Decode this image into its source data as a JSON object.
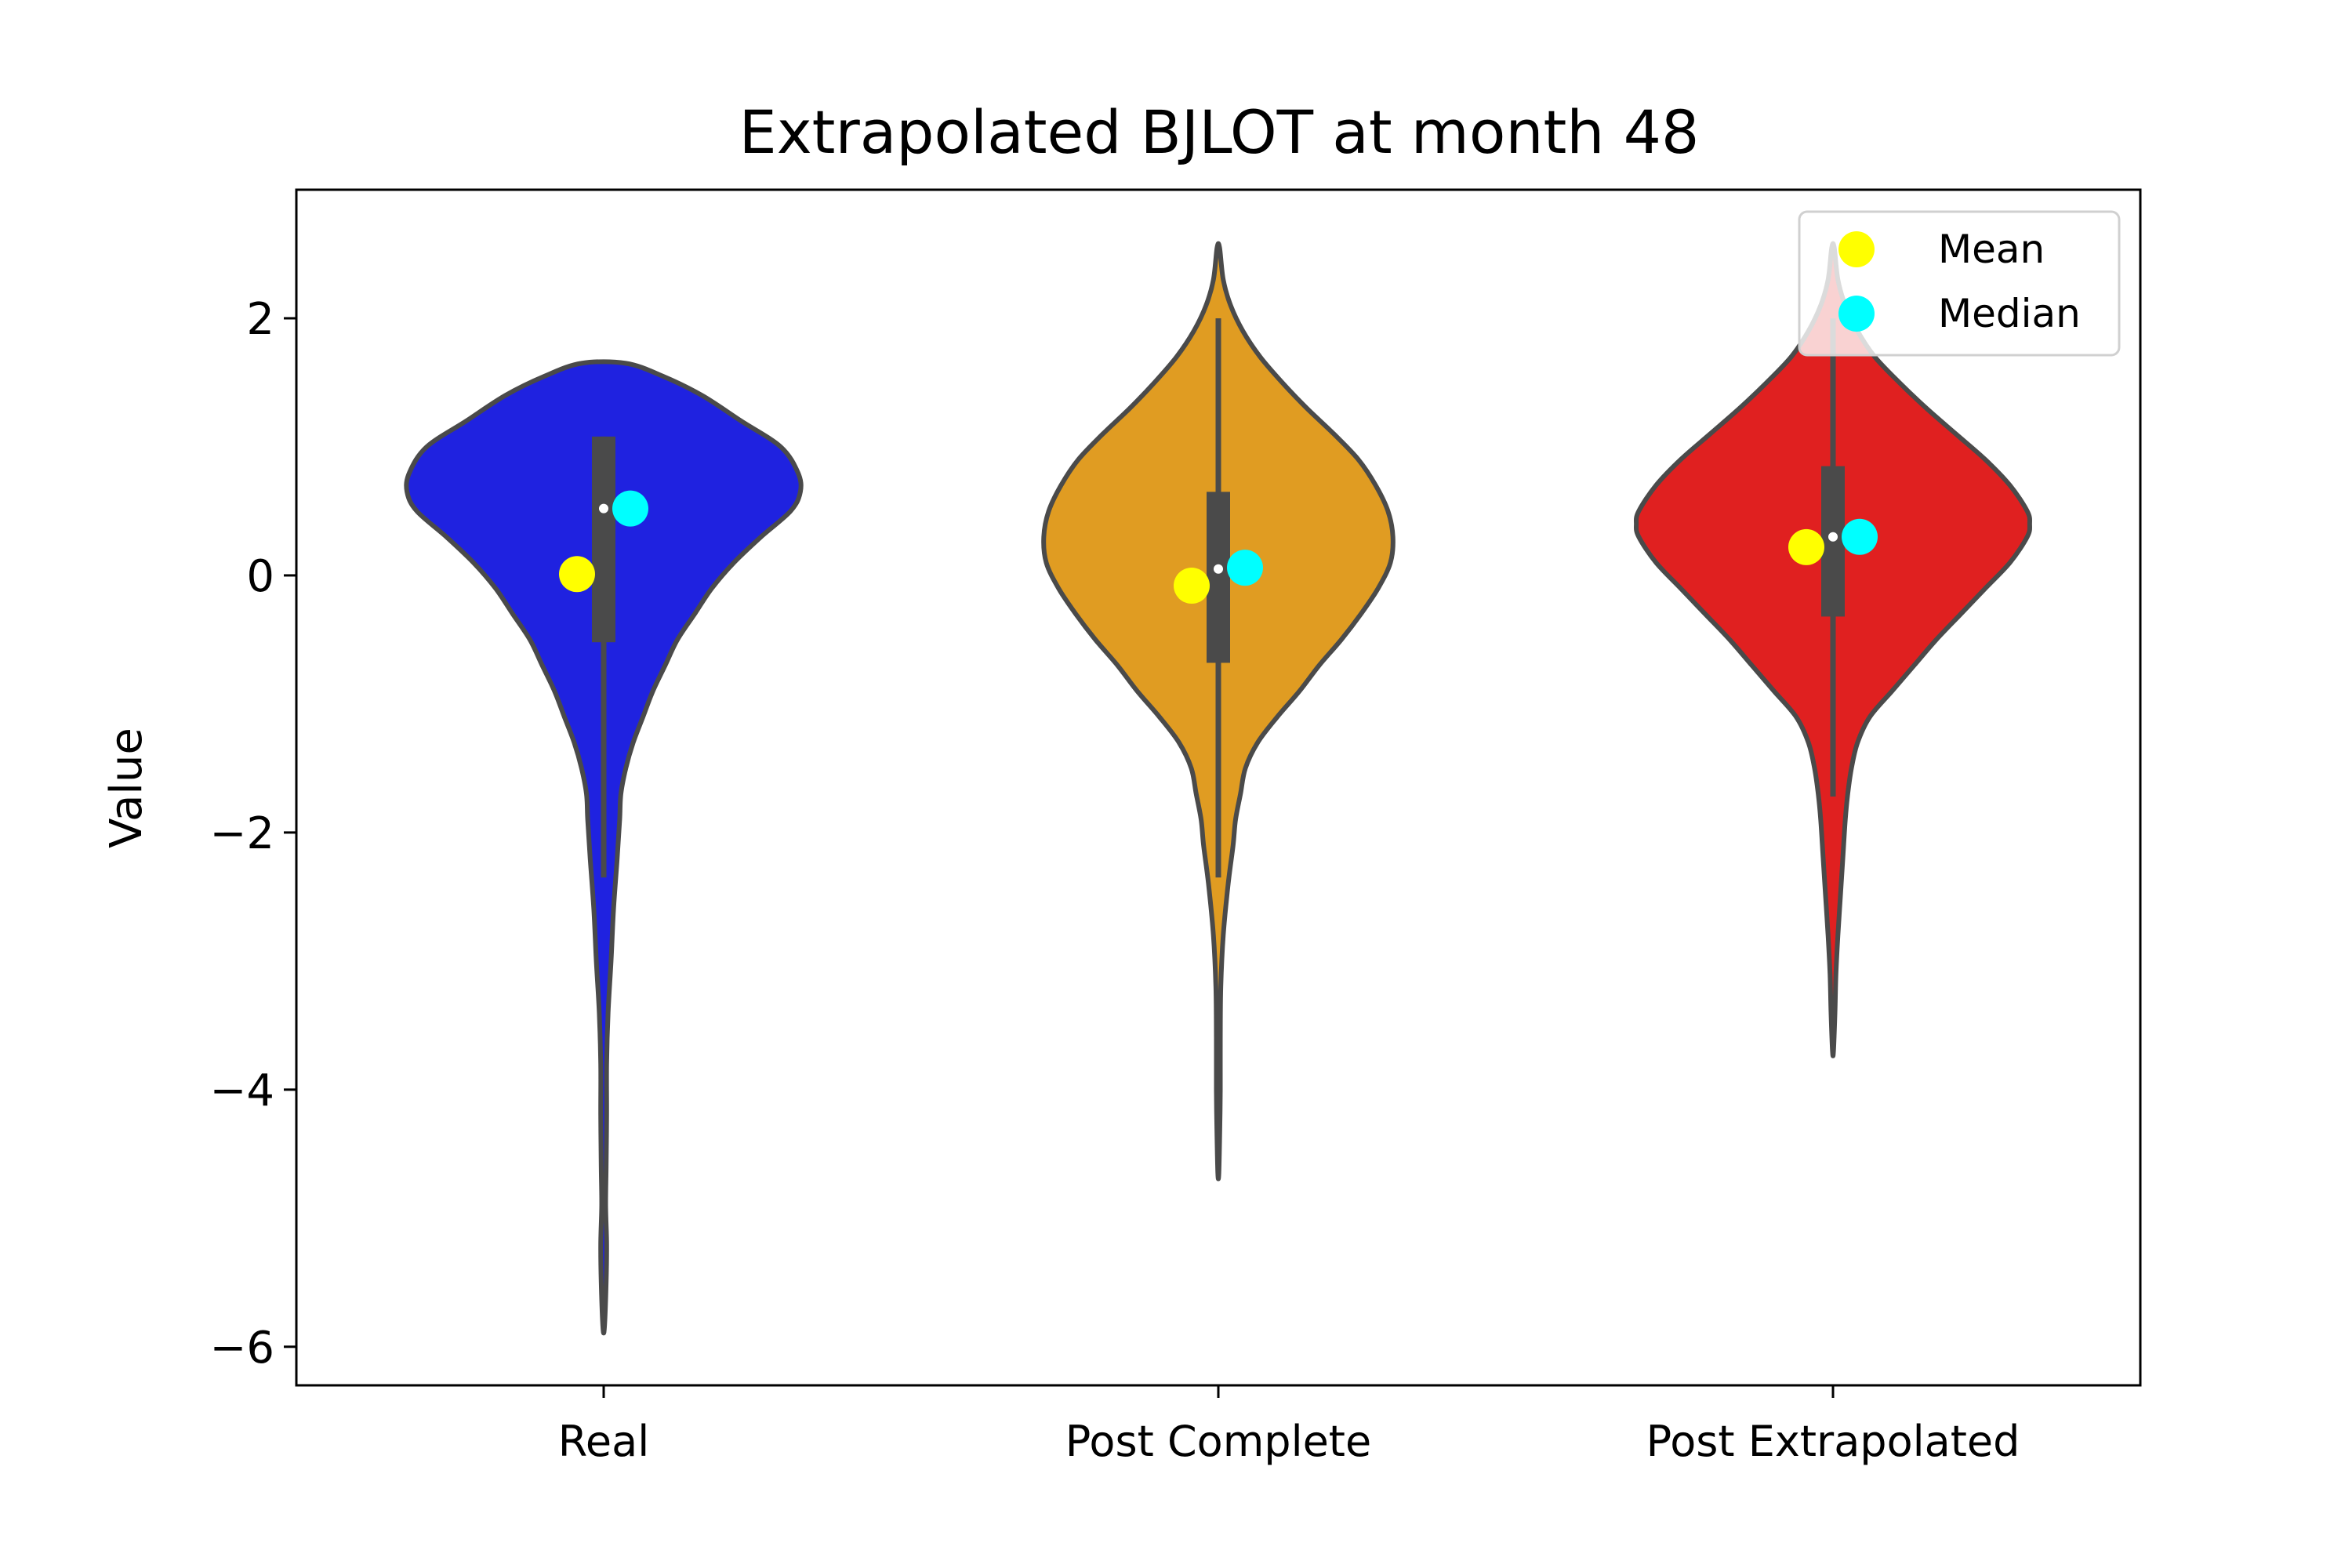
{
  "chart_data": {
    "type": "violin",
    "title": "Extrapolated BJLOT at month 48",
    "xlabel": "",
    "ylabel": "Value",
    "ylim": [
      -6.3,
      3.0
    ],
    "yticks": [
      2,
      0,
      -2,
      -4,
      -6
    ],
    "ytick_labels": [
      "2",
      "0",
      "−2",
      "−4",
      "−6"
    ],
    "categories": [
      "Real",
      "Post Complete",
      "Post Extrapolated"
    ],
    "grid": false,
    "legend": {
      "placement": "top-right",
      "entries": [
        {
          "label": "Mean",
          "color": "#ffff00"
        },
        {
          "label": "Median",
          "color": "#00ffff"
        }
      ]
    },
    "series": [
      {
        "category": "Real",
        "color": "#1f22e0",
        "min": -5.85,
        "max": 1.65,
        "q1": -0.52,
        "q3": 1.08,
        "median": 0.52,
        "whisker_low": -2.35,
        "whisker_high": 1.08,
        "mean": 0.01,
        "median_marker": 0.52,
        "density_profile": [
          [
            1.65,
            0.09
          ],
          [
            1.55,
            0.24
          ],
          [
            1.4,
            0.4
          ],
          [
            1.2,
            0.56
          ],
          [
            1.0,
            0.72
          ],
          [
            0.8,
            0.79
          ],
          [
            0.65,
            0.8
          ],
          [
            0.5,
            0.76
          ],
          [
            0.3,
            0.64
          ],
          [
            0.1,
            0.53
          ],
          [
            -0.1,
            0.44
          ],
          [
            -0.3,
            0.37
          ],
          [
            -0.5,
            0.3
          ],
          [
            -0.7,
            0.25
          ],
          [
            -0.9,
            0.2
          ],
          [
            -1.1,
            0.16
          ],
          [
            -1.3,
            0.12
          ],
          [
            -1.5,
            0.09
          ],
          [
            -1.7,
            0.07
          ],
          [
            -1.9,
            0.065
          ],
          [
            -2.2,
            0.055
          ],
          [
            -2.6,
            0.04
          ],
          [
            -3.0,
            0.03
          ],
          [
            -3.4,
            0.018
          ],
          [
            -3.8,
            0.012
          ],
          [
            -4.2,
            0.012
          ],
          [
            -4.6,
            0.01
          ],
          [
            -4.9,
            0.008
          ],
          [
            -5.2,
            0.012
          ],
          [
            -5.5,
            0.01
          ],
          [
            -5.85,
            0.003
          ]
        ]
      },
      {
        "category": "Post Complete",
        "color": "#e09c22",
        "min": -4.65,
        "max": 2.55,
        "q1": -0.68,
        "q3": 0.65,
        "median": 0.05,
        "whisker_low": -2.35,
        "whisker_high": 2.0,
        "mean": -0.08,
        "median_marker": 0.06,
        "density_profile": [
          [
            2.55,
            0.005
          ],
          [
            2.3,
            0.02
          ],
          [
            2.1,
            0.05
          ],
          [
            1.9,
            0.1
          ],
          [
            1.7,
            0.17
          ],
          [
            1.5,
            0.26
          ],
          [
            1.3,
            0.36
          ],
          [
            1.1,
            0.47
          ],
          [
            0.9,
            0.57
          ],
          [
            0.7,
            0.64
          ],
          [
            0.5,
            0.69
          ],
          [
            0.3,
            0.71
          ],
          [
            0.1,
            0.7
          ],
          [
            -0.1,
            0.65
          ],
          [
            -0.3,
            0.58
          ],
          [
            -0.5,
            0.5
          ],
          [
            -0.7,
            0.41
          ],
          [
            -0.9,
            0.33
          ],
          [
            -1.1,
            0.24
          ],
          [
            -1.3,
            0.16
          ],
          [
            -1.5,
            0.11
          ],
          [
            -1.7,
            0.09
          ],
          [
            -1.9,
            0.07
          ],
          [
            -2.1,
            0.06
          ],
          [
            -2.4,
            0.04
          ],
          [
            -2.8,
            0.02
          ],
          [
            -3.2,
            0.01
          ],
          [
            -3.6,
            0.008
          ],
          [
            -4.0,
            0.008
          ],
          [
            -4.3,
            0.006
          ],
          [
            -4.65,
            0.002
          ]
        ]
      },
      {
        "category": "Post Extrapolated",
        "color": "#e02020",
        "min": -3.7,
        "max": 2.55,
        "q1": -0.32,
        "q3": 0.85,
        "median": 0.3,
        "whisker_low": -1.72,
        "whisker_high": 2.0,
        "mean": 0.22,
        "median_marker": 0.3,
        "density_profile": [
          [
            2.55,
            0.005
          ],
          [
            2.3,
            0.02
          ],
          [
            2.1,
            0.05
          ],
          [
            1.9,
            0.1
          ],
          [
            1.7,
            0.17
          ],
          [
            1.5,
            0.27
          ],
          [
            1.3,
            0.38
          ],
          [
            1.1,
            0.5
          ],
          [
            0.9,
            0.62
          ],
          [
            0.7,
            0.72
          ],
          [
            0.5,
            0.79
          ],
          [
            0.4,
            0.8
          ],
          [
            0.3,
            0.79
          ],
          [
            0.1,
            0.72
          ],
          [
            -0.1,
            0.62
          ],
          [
            -0.3,
            0.52
          ],
          [
            -0.5,
            0.42
          ],
          [
            -0.7,
            0.33
          ],
          [
            -0.9,
            0.24
          ],
          [
            -1.1,
            0.15
          ],
          [
            -1.3,
            0.1
          ],
          [
            -1.5,
            0.075
          ],
          [
            -1.7,
            0.06
          ],
          [
            -1.9,
            0.05
          ],
          [
            -2.2,
            0.04
          ],
          [
            -2.5,
            0.03
          ],
          [
            -2.8,
            0.02
          ],
          [
            -3.1,
            0.012
          ],
          [
            -3.4,
            0.008
          ],
          [
            -3.7,
            0.002
          ]
        ]
      }
    ]
  }
}
